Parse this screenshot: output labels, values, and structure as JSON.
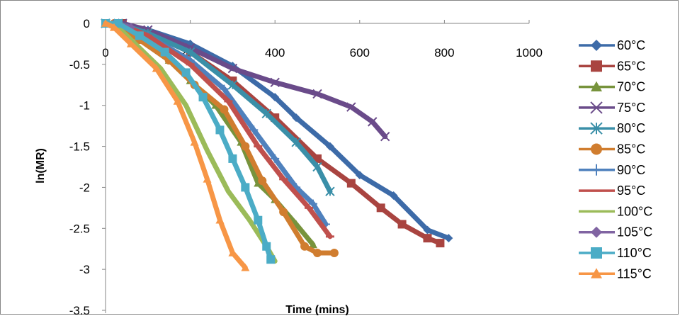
{
  "chart_data": {
    "type": "line",
    "title": "",
    "xlabel": "Time (mins)",
    "ylabel": "ln(MR)",
    "xlim": [
      0,
      1000
    ],
    "ylim": [
      -3.5,
      0
    ],
    "x_ticks": [
      "0",
      "200",
      "400",
      "600",
      "800",
      "1000"
    ],
    "y_ticks": [
      "0",
      "-0.5",
      "-1",
      "-1.5",
      "-2",
      "-2.5",
      "-3",
      "-3.5"
    ],
    "grid": false,
    "legend_position": "right",
    "series": [
      {
        "name": "60°C",
        "color": "#3D6BA8",
        "marker": "diamond",
        "points": [
          [
            0,
            0
          ],
          [
            30,
            0
          ],
          [
            100,
            -0.08
          ],
          [
            200,
            -0.25
          ],
          [
            300,
            -0.52
          ],
          [
            400,
            -0.9
          ],
          [
            450,
            -1.15
          ],
          [
            530,
            -1.5
          ],
          [
            600,
            -1.85
          ],
          [
            680,
            -2.1
          ],
          [
            760,
            -2.52
          ],
          [
            810,
            -2.62
          ]
        ]
      },
      {
        "name": "65°C",
        "color": "#A94440",
        "marker": "square",
        "points": [
          [
            0,
            0
          ],
          [
            40,
            0
          ],
          [
            100,
            -0.12
          ],
          [
            200,
            -0.35
          ],
          [
            300,
            -0.7
          ],
          [
            400,
            -1.15
          ],
          [
            500,
            -1.65
          ],
          [
            580,
            -1.95
          ],
          [
            650,
            -2.25
          ],
          [
            700,
            -2.45
          ],
          [
            760,
            -2.62
          ],
          [
            790,
            -2.68
          ]
        ]
      },
      {
        "name": "70°C",
        "color": "#77933C",
        "marker": "triangle",
        "points": [
          [
            0,
            0
          ],
          [
            20,
            0
          ],
          [
            80,
            -0.2
          ],
          [
            150,
            -0.45
          ],
          [
            200,
            -0.7
          ],
          [
            260,
            -1.0
          ],
          [
            320,
            -1.45
          ],
          [
            360,
            -1.95
          ],
          [
            400,
            -2.15
          ],
          [
            450,
            -2.45
          ],
          [
            490,
            -2.7
          ]
        ]
      },
      {
        "name": "75°C",
        "color": "#6A4B8A",
        "marker": "x",
        "points": [
          [
            0,
            0
          ],
          [
            40,
            0
          ],
          [
            100,
            -0.08
          ],
          [
            200,
            -0.3
          ],
          [
            300,
            -0.55
          ],
          [
            400,
            -0.72
          ],
          [
            500,
            -0.86
          ],
          [
            580,
            -1.02
          ],
          [
            630,
            -1.2
          ],
          [
            660,
            -1.38
          ]
        ]
      },
      {
        "name": "80°C",
        "color": "#3A8FA8",
        "marker": "asterisk",
        "points": [
          [
            0,
            0
          ],
          [
            30,
            0
          ],
          [
            100,
            -0.12
          ],
          [
            200,
            -0.35
          ],
          [
            300,
            -0.75
          ],
          [
            380,
            -1.1
          ],
          [
            450,
            -1.45
          ],
          [
            500,
            -1.75
          ],
          [
            530,
            -2.05
          ]
        ]
      },
      {
        "name": "85°C",
        "color": "#D07D2F",
        "marker": "circle",
        "points": [
          [
            0,
            0
          ],
          [
            20,
            0
          ],
          [
            80,
            -0.2
          ],
          [
            150,
            -0.45
          ],
          [
            210,
            -0.75
          ],
          [
            280,
            -1.05
          ],
          [
            330,
            -1.5
          ],
          [
            370,
            -1.92
          ],
          [
            420,
            -2.3
          ],
          [
            470,
            -2.72
          ],
          [
            500,
            -2.8
          ],
          [
            540,
            -2.8
          ]
        ]
      },
      {
        "name": "90°C",
        "color": "#4F81BD",
        "marker": "plus",
        "points": [
          [
            0,
            0
          ],
          [
            30,
            0
          ],
          [
            100,
            -0.15
          ],
          [
            200,
            -0.45
          ],
          [
            280,
            -0.8
          ],
          [
            350,
            -1.3
          ],
          [
            400,
            -1.65
          ],
          [
            450,
            -2.0
          ],
          [
            490,
            -2.2
          ],
          [
            520,
            -2.45
          ]
        ]
      },
      {
        "name": "95°C",
        "color": "#C0504D",
        "marker": "dash",
        "points": [
          [
            0,
            0
          ],
          [
            30,
            0
          ],
          [
            100,
            -0.15
          ],
          [
            200,
            -0.5
          ],
          [
            290,
            -0.95
          ],
          [
            360,
            -1.5
          ],
          [
            420,
            -1.9
          ],
          [
            480,
            -2.25
          ],
          [
            530,
            -2.6
          ]
        ]
      },
      {
        "name": "100°C",
        "color": "#9BBB59",
        "marker": "none",
        "points": [
          [
            0,
            0
          ],
          [
            20,
            0
          ],
          [
            70,
            -0.25
          ],
          [
            130,
            -0.55
          ],
          [
            190,
            -1.0
          ],
          [
            240,
            -1.55
          ],
          [
            290,
            -2.05
          ],
          [
            340,
            -2.4
          ],
          [
            380,
            -2.72
          ],
          [
            400,
            -2.9
          ]
        ]
      },
      {
        "name": "105°C",
        "color": "#8064A2",
        "marker": "diamond",
        "points": [
          [
            0,
            0
          ],
          [
            20,
            0
          ],
          [
            60,
            -0.05
          ]
        ]
      },
      {
        "name": "110°C",
        "color": "#4BACC6",
        "marker": "square",
        "points": [
          [
            0,
            0
          ],
          [
            30,
            0
          ],
          [
            80,
            -0.15
          ],
          [
            140,
            -0.35
          ],
          [
            190,
            -0.6
          ],
          [
            230,
            -0.9
          ],
          [
            270,
            -1.3
          ],
          [
            300,
            -1.65
          ],
          [
            330,
            -2.0
          ],
          [
            360,
            -2.4
          ],
          [
            380,
            -2.72
          ],
          [
            390,
            -2.88
          ]
        ]
      },
      {
        "name": "115°C",
        "color": "#F79646",
        "marker": "triangle",
        "points": [
          [
            0,
            0
          ],
          [
            20,
            -0.05
          ],
          [
            60,
            -0.25
          ],
          [
            120,
            -0.55
          ],
          [
            170,
            -0.95
          ],
          [
            210,
            -1.45
          ],
          [
            240,
            -1.9
          ],
          [
            270,
            -2.4
          ],
          [
            300,
            -2.8
          ],
          [
            330,
            -2.98
          ]
        ]
      }
    ]
  }
}
